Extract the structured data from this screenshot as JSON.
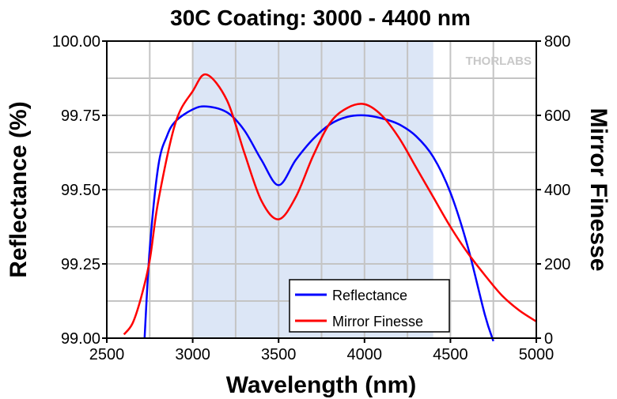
{
  "chart_data": {
    "type": "line",
    "title": "30C Coating: 3000 - 4400 nm",
    "xlabel": "Wavelength (nm)",
    "ylabel": "Reflectance (%)",
    "y2label": "Mirror Finesse",
    "xlim": [
      2500,
      5000
    ],
    "ylim": [
      99.0,
      100.0
    ],
    "y2lim": [
      0,
      800
    ],
    "xticks": [
      "2500",
      "3000",
      "3500",
      "4000",
      "4500",
      "5000"
    ],
    "yticks": [
      "99.00",
      "99.25",
      "99.50",
      "99.75",
      "100.00"
    ],
    "y2ticks": [
      "0",
      "200",
      "400",
      "600",
      "800"
    ],
    "grid": true,
    "highlight_band": [
      3000,
      4400
    ],
    "highlight_color": "#dce6f6",
    "legend_position": "bottom-right",
    "watermark": "THORLABS",
    "series": [
      {
        "name": "Reflectance",
        "axis": "left",
        "color": "#0000ff",
        "x": [
          2720,
          2750,
          2800,
          2850,
          2900,
          3000,
          3080,
          3200,
          3300,
          3400,
          3500,
          3600,
          3700,
          3800,
          3900,
          4000,
          4100,
          4200,
          4300,
          4400,
          4500,
          4600,
          4700,
          4750
        ],
        "y": [
          99.0,
          99.3,
          99.58,
          99.68,
          99.73,
          99.77,
          99.78,
          99.76,
          99.7,
          99.6,
          99.515,
          99.6,
          99.67,
          99.72,
          99.745,
          99.75,
          99.74,
          99.72,
          99.68,
          99.61,
          99.49,
          99.31,
          99.08,
          98.99
        ]
      },
      {
        "name": "Mirror Finesse",
        "axis": "right",
        "color": "#ff0000",
        "x": [
          2600,
          2650,
          2700,
          2750,
          2800,
          2900,
          3000,
          3080,
          3200,
          3300,
          3400,
          3500,
          3600,
          3700,
          3800,
          3900,
          4000,
          4100,
          4200,
          4300,
          4400,
          4500,
          4600,
          4700,
          4800,
          4900,
          5000
        ],
        "y": [
          10,
          40,
          110,
          210,
          370,
          580,
          665,
          710,
          640,
          500,
          370,
          320,
          380,
          490,
          580,
          620,
          630,
          600,
          540,
          460,
          380,
          300,
          230,
          170,
          115,
          75,
          45
        ]
      }
    ]
  }
}
